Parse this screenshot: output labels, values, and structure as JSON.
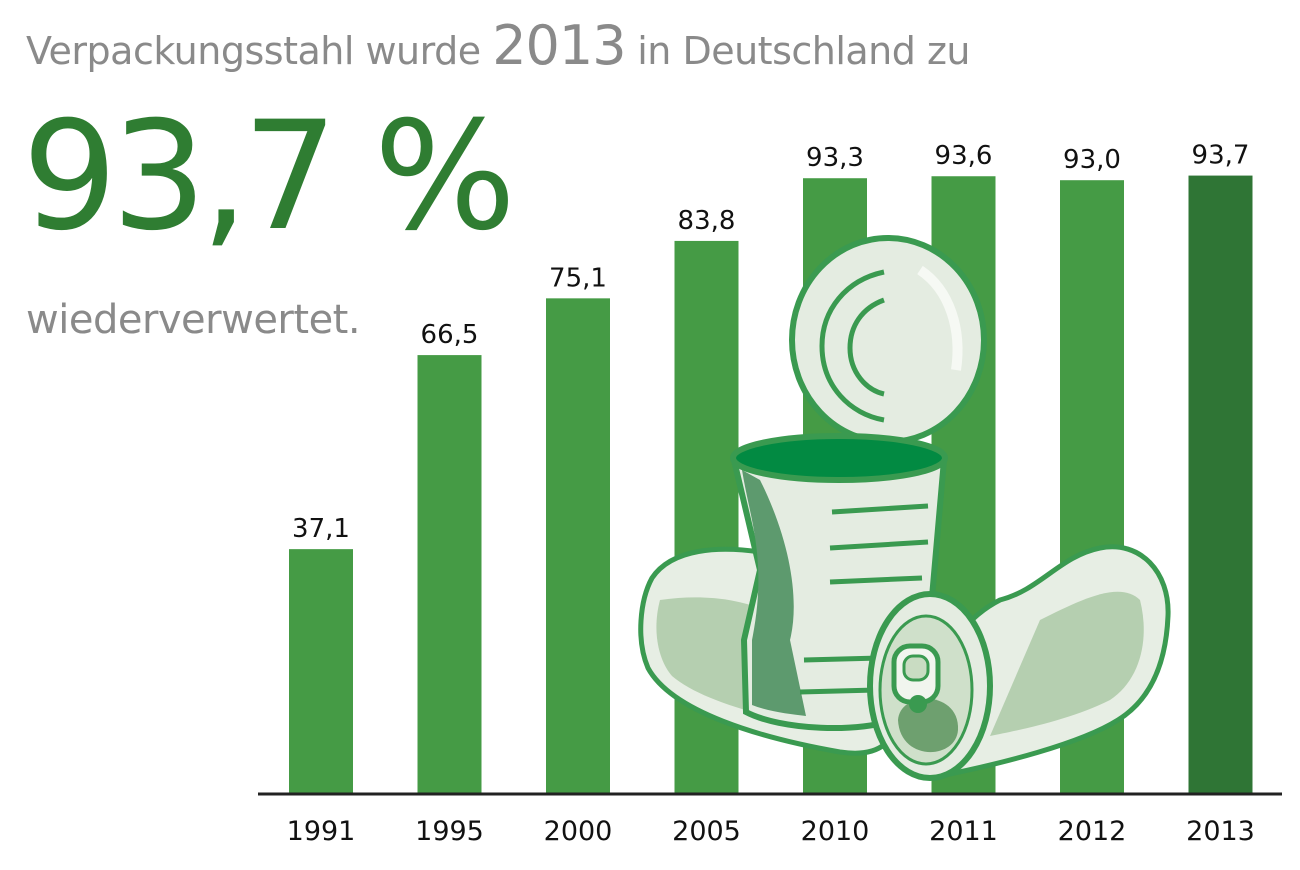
{
  "headline": {
    "prefix": "Verpackungsstahl wurde",
    "year": "2013",
    "suffix": "in Deutschland zu"
  },
  "big_value": "93,7 %",
  "subline": "wiederverwertet.",
  "colors": {
    "bar": "#459b45",
    "bar_highlight": "#2f7535",
    "headline_gray": "#8a8a8a",
    "big_value_green": "#2f7d32",
    "can_fill": "#e6eee4",
    "can_stroke": "#3a9a50",
    "can_shade": "#9fc09a"
  },
  "illustration_icon": "steel-cans-icon",
  "chart_data": {
    "type": "bar",
    "title": "",
    "xlabel": "",
    "ylabel": "",
    "categories": [
      "1991",
      "1995",
      "2000",
      "2005",
      "2010",
      "2011",
      "2012",
      "2013"
    ],
    "values": [
      37.1,
      66.5,
      75.1,
      83.8,
      93.3,
      93.6,
      93.0,
      93.7
    ],
    "value_labels": [
      "37,1",
      "66,5",
      "75,1",
      "83,8",
      "93,3",
      "93,6",
      "93,0",
      "93,7"
    ],
    "highlight_category": "2013",
    "ylim": [
      0,
      100
    ],
    "grid": false,
    "legend": "none"
  }
}
